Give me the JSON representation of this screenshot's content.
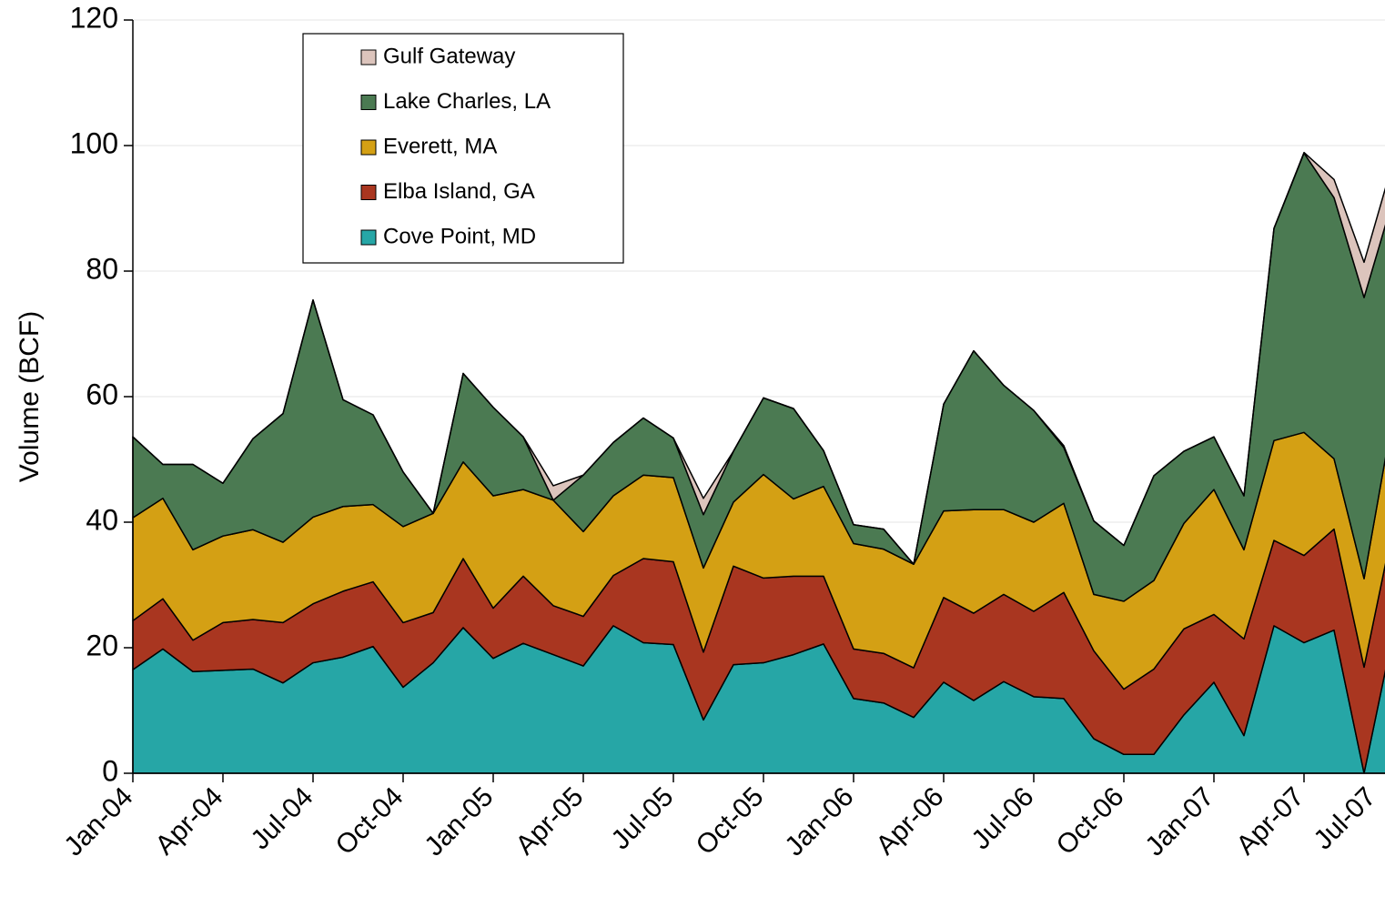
{
  "chart_data": {
    "type": "stacked-area",
    "y_label": "Volume (BCF)",
    "categories": [
      "Jan-04",
      null,
      null,
      "Apr-04",
      null,
      null,
      "Jul-04",
      null,
      null,
      "Oct-04",
      null,
      null,
      "Jan-05",
      null,
      null,
      "Apr-05",
      null,
      null,
      "Jul-05",
      null,
      null,
      "Oct-05",
      null,
      null,
      "Jan-06",
      null,
      null,
      "Apr-06",
      null,
      null,
      "Jul-06",
      null,
      null,
      "Oct-06",
      null,
      null,
      "Jan-07",
      null,
      null,
      "Apr-07",
      null,
      null,
      "Jul-07"
    ],
    "series": [
      {
        "name": "Cove Point, MD",
        "color": "#26a6a6",
        "values": [
          16.5,
          19.8,
          16.2,
          16.4,
          16.6,
          14.4,
          17.6,
          18.5,
          20.2,
          13.7,
          17.6,
          23.2,
          18.3,
          20.7,
          18.9,
          17.1,
          23.5,
          20.8,
          20.5,
          8.5,
          17.3,
          17.6,
          18.9,
          20.6,
          11.9,
          11.2,
          8.9,
          14.5,
          11.6,
          14.6,
          12.2,
          11.9,
          5.5,
          3.0,
          3.0,
          9.3,
          14.5,
          6.0,
          23.5,
          20.8,
          22.8,
          0,
          23
        ]
      },
      {
        "name": "Elba Island, GA",
        "color": "#a93620",
        "values": [
          7.8,
          8.0,
          5.0,
          7.6,
          7.9,
          9.6,
          9.4,
          10.5,
          10.3,
          10.3,
          8.0,
          11.0,
          8.0,
          10.7,
          7.8,
          7.9,
          8.0,
          13.4,
          13.2,
          10.8,
          15.7,
          13.5,
          12.5,
          10.8,
          7.9,
          7.9,
          7.9,
          13.5,
          13.9,
          13.9,
          13.6,
          16.9,
          14.0,
          10.4,
          13.6,
          13.7,
          10.8,
          15.4,
          13.6,
          13.9,
          16.1,
          16.9,
          17
        ]
      },
      {
        "name": "Everett, MA",
        "color": "#d4a014",
        "values": [
          16.4,
          16.0,
          14.4,
          13.8,
          14.3,
          12.8,
          13.8,
          13.5,
          12.3,
          15.3,
          15.8,
          15.4,
          17.9,
          13.8,
          16.8,
          13.5,
          12.7,
          13.3,
          13.4,
          13.4,
          10.2,
          16.5,
          12.3,
          14.3,
          16.8,
          16.6,
          16.5,
          13.8,
          16.5,
          13.5,
          14.2,
          14.2,
          9.0,
          14.0,
          14.1,
          16.8,
          19.9,
          14.2,
          15.9,
          19.6,
          11.2,
          14.1,
          18
        ]
      },
      {
        "name": "Lake Charles, LA",
        "color": "#4b7a52",
        "values": [
          12.9,
          5.4,
          13.6,
          8.4,
          14.5,
          20.5,
          34.6,
          17.0,
          14.3,
          8.7,
          0,
          14.1,
          14.1,
          8.4,
          0,
          9.0,
          8.5,
          9.1,
          6.3,
          8.5,
          8.1,
          12.2,
          14.4,
          5.7,
          3.0,
          3.2,
          0,
          17.0,
          25.3,
          19.8,
          17.8,
          8.9,
          11.7,
          8.9,
          16.7,
          11.5,
          8.4,
          8.6,
          33.8,
          44.5,
          41.6,
          44.8,
          34
        ]
      },
      {
        "name": "Gulf Gateway",
        "color": "#dcc4bc",
        "values": [
          0,
          0,
          0,
          0,
          0,
          0,
          0,
          0,
          0,
          0,
          0,
          0,
          0,
          0,
          2.3,
          0,
          0,
          0,
          0,
          2.6,
          0,
          0,
          0,
          0,
          0,
          0,
          0,
          0,
          0,
          0,
          0,
          0.3,
          0,
          0,
          0,
          0,
          0,
          0,
          0,
          0.1,
          2.9,
          5.6,
          6
        ]
      }
    ],
    "ylim": [
      0,
      120
    ],
    "yticks": [
      0,
      20,
      40,
      60,
      80,
      100,
      120
    ],
    "grid": true
  }
}
